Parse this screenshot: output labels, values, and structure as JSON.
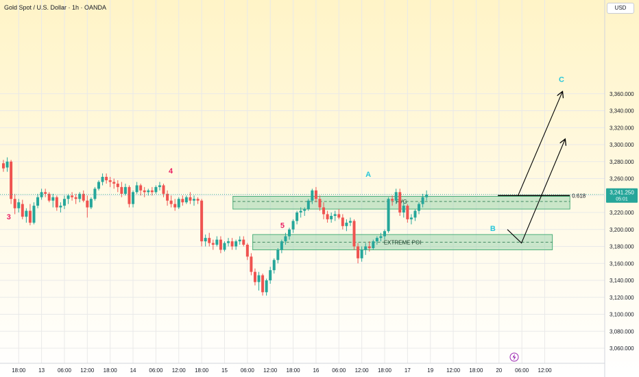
{
  "header": {
    "title": "Gold Spot / U.S. Dollar · 1h · OANDA",
    "currency": "USD"
  },
  "price_badge": {
    "price": "3,241.250",
    "countdown": "05:01"
  },
  "colors": {
    "up": "#26a69a",
    "down": "#ef5350",
    "zone_fill": "#9fd6b0",
    "wave_red": "#e91e63",
    "wave_teal": "#26c6da",
    "grid": "#e9e9e9",
    "background_top": "#fff4c7",
    "background_bottom": "#ffffff"
  },
  "chart_data": {
    "type": "candlestick",
    "symbol": "Gold Spot / U.S. Dollar",
    "timeframe": "1h",
    "ylim": [
      3050,
      3372
    ],
    "y_ticks": [
      3060,
      3080,
      3100,
      3120,
      3140,
      3160,
      3180,
      3200,
      3220,
      3240,
      3260,
      3280,
      3300,
      3320,
      3340,
      3360
    ],
    "y_tick_labels": [
      "3,060.000",
      "3,080.000",
      "3,100.000",
      "3,120.000",
      "3,140.000",
      "3,160.000",
      "3,180.000",
      "3,200.000",
      "3,220.000",
      "3,240.000",
      "3,260.000",
      "3,280.000",
      "3,300.000",
      "3,320.000",
      "3,340.000",
      "3,360.000"
    ],
    "x_ticks": [
      {
        "label": "18:00",
        "bar": 4
      },
      {
        "label": "13",
        "bar": 10
      },
      {
        "label": "06:00",
        "bar": 16
      },
      {
        "label": "12:00",
        "bar": 22
      },
      {
        "label": "18:00",
        "bar": 28
      },
      {
        "label": "14",
        "bar": 34
      },
      {
        "label": "06:00",
        "bar": 40
      },
      {
        "label": "12:00",
        "bar": 46
      },
      {
        "label": "18:00",
        "bar": 52
      },
      {
        "label": "15",
        "bar": 58
      },
      {
        "label": "06:00",
        "bar": 64
      },
      {
        "label": "12:00",
        "bar": 70
      },
      {
        "label": "18:00",
        "bar": 76
      },
      {
        "label": "16",
        "bar": 82
      },
      {
        "label": "06:00",
        "bar": 88
      },
      {
        "label": "12:00",
        "bar": 94
      },
      {
        "label": "18:00",
        "bar": 100
      },
      {
        "label": "17",
        "bar": 106
      },
      {
        "label": "19",
        "bar": 112
      },
      {
        "label": "12:00",
        "bar": 118
      },
      {
        "label": "18:00",
        "bar": 124
      },
      {
        "label": "20",
        "bar": 130
      },
      {
        "label": "06:00",
        "bar": 136
      },
      {
        "label": "12:00",
        "bar": 142
      }
    ],
    "candles": [
      [
        3278,
        3282,
        3268,
        3272
      ],
      [
        3273,
        3285,
        3268,
        3280
      ],
      [
        3280,
        3282,
        3230,
        3236
      ],
      [
        3236,
        3242,
        3218,
        3225
      ],
      [
        3225,
        3236,
        3220,
        3232
      ],
      [
        3230,
        3235,
        3212,
        3215
      ],
      [
        3215,
        3225,
        3208,
        3222
      ],
      [
        3222,
        3230,
        3205,
        3208
      ],
      [
        3208,
        3232,
        3206,
        3228
      ],
      [
        3228,
        3242,
        3225,
        3238
      ],
      [
        3238,
        3248,
        3235,
        3244
      ],
      [
        3244,
        3248,
        3238,
        3242
      ],
      [
        3242,
        3244,
        3232,
        3234
      ],
      [
        3234,
        3242,
        3226,
        3238
      ],
      [
        3238,
        3240,
        3222,
        3226
      ],
      [
        3226,
        3232,
        3220,
        3228
      ],
      [
        3228,
        3240,
        3224,
        3236
      ],
      [
        3236,
        3242,
        3230,
        3240
      ],
      [
        3240,
        3244,
        3234,
        3238
      ],
      [
        3238,
        3242,
        3230,
        3236
      ],
      [
        3236,
        3244,
        3232,
        3242
      ],
      [
        3242,
        3246,
        3232,
        3234
      ],
      [
        3234,
        3240,
        3214,
        3226
      ],
      [
        3226,
        3238,
        3224,
        3236
      ],
      [
        3236,
        3250,
        3234,
        3248
      ],
      [
        3248,
        3258,
        3246,
        3256
      ],
      [
        3256,
        3266,
        3252,
        3262
      ],
      [
        3262,
        3266,
        3254,
        3258
      ],
      [
        3258,
        3262,
        3250,
        3256
      ],
      [
        3256,
        3260,
        3248,
        3254
      ],
      [
        3254,
        3258,
        3244,
        3250
      ],
      [
        3250,
        3256,
        3238,
        3242
      ],
      [
        3242,
        3254,
        3240,
        3250
      ],
      [
        3250,
        3252,
        3226,
        3230
      ],
      [
        3230,
        3246,
        3226,
        3244
      ],
      [
        3244,
        3256,
        3242,
        3252
      ],
      [
        3252,
        3254,
        3240,
        3246
      ],
      [
        3246,
        3250,
        3238,
        3244
      ],
      [
        3244,
        3248,
        3240,
        3246
      ],
      [
        3246,
        3250,
        3240,
        3244
      ],
      [
        3244,
        3252,
        3242,
        3250
      ],
      [
        3250,
        3256,
        3246,
        3252
      ],
      [
        3252,
        3254,
        3238,
        3242
      ],
      [
        3242,
        3246,
        3228,
        3234
      ],
      [
        3234,
        3240,
        3226,
        3230
      ],
      [
        3230,
        3236,
        3222,
        3226
      ],
      [
        3226,
        3238,
        3224,
        3236
      ],
      [
        3236,
        3240,
        3228,
        3232
      ],
      [
        3232,
        3240,
        3230,
        3238
      ],
      [
        3238,
        3244,
        3230,
        3234
      ],
      [
        3234,
        3240,
        3228,
        3236
      ],
      [
        3236,
        3238,
        3230,
        3234
      ],
      [
        3234,
        3236,
        3180,
        3186
      ],
      [
        3186,
        3194,
        3180,
        3190
      ],
      [
        3190,
        3196,
        3180,
        3184
      ],
      [
        3184,
        3188,
        3176,
        3182
      ],
      [
        3182,
        3192,
        3180,
        3188
      ],
      [
        3188,
        3192,
        3172,
        3176
      ],
      [
        3176,
        3186,
        3174,
        3184
      ],
      [
        3184,
        3190,
        3180,
        3186
      ],
      [
        3186,
        3190,
        3176,
        3180
      ],
      [
        3180,
        3188,
        3176,
        3186
      ],
      [
        3186,
        3192,
        3182,
        3188
      ],
      [
        3188,
        3192,
        3180,
        3182
      ],
      [
        3182,
        3184,
        3164,
        3168
      ],
      [
        3168,
        3172,
        3146,
        3150
      ],
      [
        3150,
        3154,
        3134,
        3138
      ],
      [
        3138,
        3150,
        3128,
        3146
      ],
      [
        3146,
        3148,
        3122,
        3126
      ],
      [
        3126,
        3142,
        3122,
        3140
      ],
      [
        3140,
        3156,
        3136,
        3152
      ],
      [
        3152,
        3166,
        3148,
        3164
      ],
      [
        3164,
        3178,
        3160,
        3176
      ],
      [
        3176,
        3188,
        3172,
        3186
      ],
      [
        3186,
        3196,
        3182,
        3192
      ],
      [
        3192,
        3202,
        3188,
        3200
      ],
      [
        3200,
        3212,
        3196,
        3210
      ],
      [
        3210,
        3222,
        3206,
        3220
      ],
      [
        3220,
        3226,
        3214,
        3222
      ],
      [
        3222,
        3226,
        3216,
        3224
      ],
      [
        3224,
        3236,
        3222,
        3234
      ],
      [
        3234,
        3248,
        3230,
        3246
      ],
      [
        3246,
        3250,
        3232,
        3236
      ],
      [
        3236,
        3240,
        3222,
        3226
      ],
      [
        3226,
        3232,
        3212,
        3218
      ],
      [
        3218,
        3222,
        3208,
        3212
      ],
      [
        3212,
        3220,
        3208,
        3216
      ],
      [
        3216,
        3222,
        3210,
        3218
      ],
      [
        3218,
        3224,
        3212,
        3214
      ],
      [
        3214,
        3218,
        3200,
        3204
      ],
      [
        3204,
        3212,
        3198,
        3208
      ],
      [
        3208,
        3214,
        3204,
        3210
      ],
      [
        3210,
        3212,
        3176,
        3180
      ],
      [
        3180,
        3184,
        3160,
        3166
      ],
      [
        3166,
        3180,
        3162,
        3176
      ],
      [
        3176,
        3184,
        3170,
        3180
      ],
      [
        3180,
        3186,
        3174,
        3178
      ],
      [
        3178,
        3188,
        3176,
        3186
      ],
      [
        3186,
        3192,
        3182,
        3190
      ],
      [
        3190,
        3196,
        3186,
        3192
      ],
      [
        3192,
        3200,
        3188,
        3198
      ],
      [
        3198,
        3238,
        3196,
        3236
      ],
      [
        3236,
        3240,
        3228,
        3234
      ],
      [
        3234,
        3248,
        3230,
        3244
      ],
      [
        3244,
        3248,
        3216,
        3220
      ],
      [
        3220,
        3232,
        3214,
        3228
      ],
      [
        3228,
        3230,
        3208,
        3212
      ],
      [
        3212,
        3218,
        3206,
        3214
      ],
      [
        3214,
        3224,
        3210,
        3222
      ],
      [
        3222,
        3232,
        3218,
        3230
      ],
      [
        3230,
        3242,
        3226,
        3238
      ],
      [
        3238,
        3246,
        3234,
        3241
      ]
    ],
    "bar_x0": 5,
    "bar_dx": 5.56,
    "zones": [
      {
        "label": "FVG",
        "x_from": 60.2,
        "x_to": 148.6,
        "y_low": 3224,
        "y_high": 3239,
        "mid": 3233
      },
      {
        "label": "EXTREME POI",
        "x_from": 65.4,
        "x_to": 144.0,
        "y_low": 3176,
        "y_high": 3194,
        "mid": 3185
      }
    ],
    "fib_level": {
      "label": "0.618",
      "price": 3240,
      "x_from": 129.7,
      "x_to": 148.6
    },
    "projection_paths": [
      {
        "name": "path-1",
        "points": [
          [
            135.0,
            3240
          ],
          [
            146.6,
            3362
          ]
        ]
      },
      {
        "name": "path-2",
        "points": [
          [
            132.2,
            3200
          ],
          [
            135.9,
            3184
          ],
          [
            147.3,
            3306
          ]
        ]
      }
    ],
    "wave_labels": [
      {
        "text": "3",
        "bar": 1.4,
        "price": 3212,
        "color": "red"
      },
      {
        "text": "4",
        "bar": 43.9,
        "price": 3266,
        "color": "red"
      },
      {
        "text": "5",
        "bar": 73.2,
        "price": 3202,
        "color": "red"
      },
      {
        "text": "A",
        "bar": 95.7,
        "price": 3262,
        "color": "teal"
      },
      {
        "text": "B",
        "bar": 128.4,
        "price": 3198,
        "color": "teal"
      },
      {
        "text": "C",
        "bar": 146.4,
        "price": 3374,
        "color": "teal"
      }
    ],
    "last_price": 3241.25
  }
}
